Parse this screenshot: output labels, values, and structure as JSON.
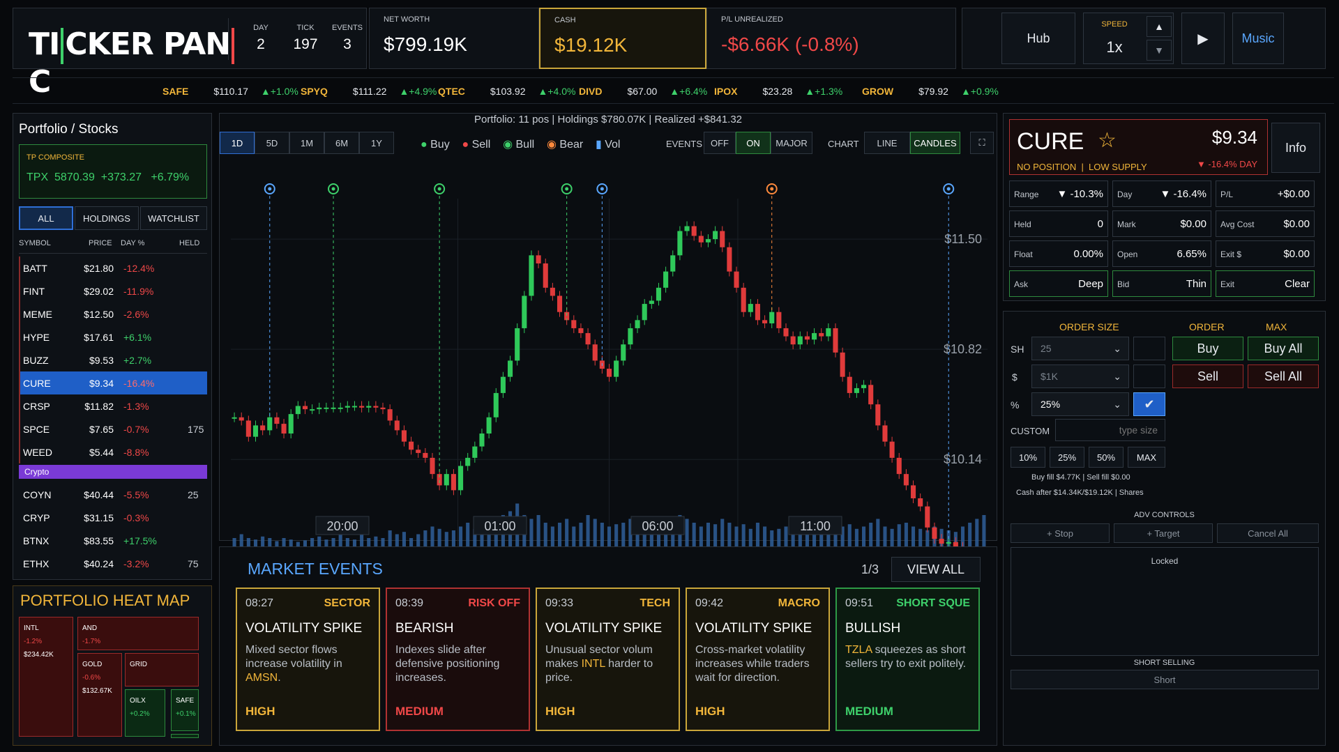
{
  "header": {
    "logo": "TICKER PANIC",
    "day_label": "DAY",
    "day": "2",
    "tick_label": "TICK",
    "tick": "197",
    "events_label": "EVENTS",
    "events": "3",
    "net_worth_label": "NET WORTH",
    "net_worth": "$799.19K",
    "cash_label": "CASH",
    "cash": "$19.12K",
    "pl_label": "P/L UNREALIZED",
    "pl": "-$6.66K (-0.8%)",
    "hub": "Hub",
    "speed_label": "SPEED",
    "speed": "1x",
    "speed_up": "▲",
    "speed_down": "▼",
    "play": "▶",
    "music": "Music"
  },
  "ticker": [
    {
      "sym": "SAFE",
      "price": "$110.17",
      "chg": "▲+1.0%"
    },
    {
      "sym": "SPYQ",
      "price": "$111.22",
      "chg": "▲+4.9%"
    },
    {
      "sym": "QTEC",
      "price": "$103.92",
      "chg": "▲+4.0%"
    },
    {
      "sym": "DIVD",
      "price": "$67.00",
      "chg": "▲+6.4%"
    },
    {
      "sym": "IPOX",
      "price": "$23.28",
      "chg": "▲+1.3%"
    },
    {
      "sym": "GROW",
      "price": "$79.92",
      "chg": "▲+0.9%"
    }
  ],
  "sidebar": {
    "title": "Portfolio / Stocks",
    "composite_label": "TP COMPOSITE",
    "composite_sym": "TPX",
    "composite_val": "5870.39",
    "composite_chg": "+373.27",
    "composite_pct": "+6.79%",
    "tabs": [
      "ALL",
      "HOLDINGS",
      "WATCHLIST"
    ],
    "cols": [
      "SYMBOL",
      "PRICE",
      "DAY %",
      "HELD"
    ],
    "stocks": [
      {
        "sym": "BATT",
        "price": "$21.80",
        "day": "-12.4%",
        "held": ""
      },
      {
        "sym": "FINT",
        "price": "$29.02",
        "day": "-11.9%",
        "held": ""
      },
      {
        "sym": "MEME",
        "price": "$12.50",
        "day": "-2.6%",
        "held": ""
      },
      {
        "sym": "HYPE",
        "price": "$17.61",
        "day": "+6.1%",
        "held": ""
      },
      {
        "sym": "BUZZ",
        "price": "$9.53",
        "day": "+2.7%",
        "held": ""
      },
      {
        "sym": "CURE",
        "price": "$9.34",
        "day": "-16.4%",
        "held": ""
      },
      {
        "sym": "CRSP",
        "price": "$11.82",
        "day": "-1.3%",
        "held": ""
      },
      {
        "sym": "SPCE",
        "price": "$7.65",
        "day": "-0.7%",
        "held": "175"
      },
      {
        "sym": "WEED",
        "price": "$5.44",
        "day": "-8.8%",
        "held": ""
      }
    ],
    "crypto_label": "Crypto",
    "crypto": [
      {
        "sym": "COYN",
        "price": "$40.44",
        "day": "-5.5%",
        "held": "25"
      },
      {
        "sym": "CRYP",
        "price": "$31.15",
        "day": "-0.3%",
        "held": ""
      },
      {
        "sym": "BTNX",
        "price": "$83.55",
        "day": "+17.5%",
        "held": ""
      },
      {
        "sym": "ETHX",
        "price": "$40.24",
        "day": "-3.2%",
        "held": "75"
      }
    ]
  },
  "heatmap": {
    "title": "PORTFOLIO HEAT MAP",
    "tiles": [
      {
        "name": "INTL",
        "pct": "-1.2%",
        "val": "$234.42K"
      },
      {
        "name": "AND",
        "pct": "-1.7%",
        "val": ""
      },
      {
        "name": "GOLD",
        "pct": "-0.6%",
        "val": "$132.67K"
      },
      {
        "name": "GRID",
        "pct": "",
        "val": ""
      },
      {
        "name": "OILX",
        "pct": "+0.2%",
        "val": ""
      },
      {
        "name": "SAFE",
        "pct": "+0.1%",
        "val": ""
      }
    ]
  },
  "chart": {
    "summary": "Portfolio: 11 pos | Holdings $780.07K | Realized +$841.32",
    "ranges": [
      "1D",
      "5D",
      "1M",
      "6M",
      "1Y"
    ],
    "legend": {
      "buy": "Buy",
      "sell": "Sell",
      "bull": "Bull",
      "bear": "Bear",
      "vol": "Vol"
    },
    "events_label": "EVENTS",
    "events_opts": [
      "OFF",
      "ON",
      "MAJOR"
    ],
    "chart_label": "CHART",
    "chart_opts": [
      "LINE",
      "CANDLES"
    ],
    "expand": "⛶",
    "price_label": "$9.34"
  },
  "chart_data": {
    "type": "candlestick",
    "ylim": [
      9.9,
      11.75
    ],
    "yticks": [
      "$11.50",
      "$10.82",
      "$10.14"
    ],
    "ytick_values": [
      11.5,
      10.82,
      10.14
    ],
    "xticks": [
      "20:00",
      "01:00",
      "06:00",
      "11:00"
    ],
    "closes": [
      10.4,
      10.38,
      10.28,
      10.35,
      10.32,
      10.4,
      10.36,
      10.3,
      10.42,
      10.47,
      10.45,
      10.45,
      10.46,
      10.46,
      10.46,
      10.46,
      10.47,
      10.47,
      10.46,
      10.47,
      10.46,
      10.45,
      10.38,
      10.32,
      10.25,
      10.2,
      10.18,
      10.15,
      10.05,
      9.98,
      10.05,
      9.95,
      10.1,
      10.15,
      10.22,
      10.3,
      10.4,
      10.55,
      10.65,
      10.75,
      10.95,
      11.15,
      11.4,
      11.35,
      11.2,
      11.15,
      11.05,
      11.0,
      10.95,
      10.92,
      10.85,
      10.75,
      10.7,
      10.65,
      10.75,
      10.85,
      10.95,
      11.0,
      11.1,
      11.12,
      11.2,
      11.3,
      11.4,
      11.55,
      11.58,
      11.52,
      11.48,
      11.5,
      11.55,
      11.45,
      11.3,
      11.2,
      11.05,
      11.1,
      11.0,
      10.98,
      11.05,
      10.95,
      10.9,
      10.85,
      10.9,
      10.88,
      10.92,
      10.9,
      10.95,
      10.8,
      10.65,
      10.55,
      10.58,
      10.6,
      10.48,
      10.35,
      10.25,
      10.15,
      10.05,
      9.98,
      9.9,
      9.85,
      9.72,
      9.65,
      9.62,
      9.63,
      9.6,
      9.55,
      9.52,
      9.5,
      9.34
    ],
    "volumes": [
      0.3,
      0.35,
      0.3,
      0.28,
      0.32,
      0.3,
      0.26,
      0.3,
      0.28,
      0.25,
      0.27,
      0.3,
      0.32,
      0.28,
      0.3,
      0.35,
      0.3,
      0.28,
      0.35,
      0.3,
      0.32,
      0.3,
      0.4,
      0.35,
      0.38,
      0.3,
      0.35,
      0.4,
      0.45,
      0.42,
      0.38,
      0.4,
      0.45,
      0.5,
      0.42,
      0.45,
      0.55,
      0.5,
      0.6,
      0.65,
      0.75,
      0.6,
      0.55,
      0.6,
      0.5,
      0.45,
      0.5,
      0.55,
      0.45,
      0.5,
      0.6,
      0.55,
      0.5,
      0.45,
      0.48,
      0.5,
      0.55,
      0.5,
      0.45,
      0.5,
      0.55,
      0.48,
      0.5,
      0.6,
      0.55,
      0.5,
      0.45,
      0.5,
      0.48,
      0.55,
      0.5,
      0.45,
      0.48,
      0.42,
      0.5,
      0.45,
      0.4,
      0.42,
      0.45,
      0.4,
      0.38,
      0.42,
      0.45,
      0.4,
      0.38,
      0.42,
      0.45,
      0.48,
      0.42,
      0.45,
      0.5,
      0.55,
      0.45,
      0.42,
      0.48,
      0.5,
      0.45,
      0.42,
      0.4,
      0.45,
      0.42,
      0.4,
      0.38,
      0.45,
      0.5,
      0.55,
      0.6
    ],
    "event_markers": [
      {
        "i": 5,
        "type": "bull"
      },
      {
        "i": 14,
        "type": "buy"
      },
      {
        "i": 29,
        "type": "buy"
      },
      {
        "i": 47,
        "type": "buy"
      },
      {
        "i": 52,
        "type": "bull"
      },
      {
        "i": 76,
        "type": "bear"
      },
      {
        "i": 101,
        "type": "bull"
      }
    ]
  },
  "cure": {
    "sym": "CURE",
    "star": "☆",
    "price": "$9.34",
    "status": "NO POSITION  |  LOW SUPPLY",
    "day": "▼ -16.4% DAY",
    "info": "Info",
    "cells": [
      {
        "k": "Range",
        "v": "▼ -10.3%",
        "c": "r"
      },
      {
        "k": "Day",
        "v": "▼ -16.4%",
        "c": "r"
      },
      {
        "k": "P/L",
        "v": "+$0.00",
        "c": "w"
      },
      {
        "k": "Held",
        "v": "0",
        "c": "w"
      },
      {
        "k": "Mark",
        "v": "$0.00",
        "c": "w"
      },
      {
        "k": "Avg Cost",
        "v": "$0.00",
        "c": "w"
      },
      {
        "k": "Float",
        "v": "0.00%",
        "c": "w"
      },
      {
        "k": "Open",
        "v": "6.65%",
        "c": "y"
      },
      {
        "k": "Exit $",
        "v": "$0.00",
        "c": "w"
      },
      {
        "k": "Ask",
        "v": "Deep",
        "c": "g"
      },
      {
        "k": "Bid",
        "v": "Thin",
        "c": "y"
      },
      {
        "k": "Exit",
        "v": "Clear",
        "c": "g"
      }
    ]
  },
  "order": {
    "size_label": "ORDER SIZE",
    "order_label": "ORDER",
    "max_label": "MAX",
    "sh": "SH",
    "sh_val": "25",
    "usd": "$",
    "usd_val": "$1K",
    "pct": "%",
    "pct_val": "25%",
    "buy": "Buy",
    "buy_all": "Buy All",
    "sell": "Sell",
    "sell_all": "Sell All",
    "custom": "CUSTOM",
    "custom_ph": "type size",
    "quick": [
      "10%",
      "25%",
      "50%",
      "MAX"
    ],
    "fill": "Buy fill $4.77K | Sell fill $0.00",
    "cash_after": "Cash after $14.34K/$19.12K | Shares",
    "adv": "ADV CONTROLS",
    "stop": "+ Stop",
    "target": "+ Target",
    "cancel_all": "Cancel All",
    "locked": "Locked",
    "short_label": "SHORT SELLING",
    "short": "Short"
  },
  "events": {
    "title": "MARKET EVENTS",
    "page": "1/3",
    "view_all": "VIEW ALL",
    "cards": [
      {
        "time": "08:27",
        "cat": "SECTOR",
        "head": "VOLATILITY SPIKE",
        "desc": "Mixed sector flows increase volatility in ",
        "ticker": "AMSN",
        "tail": ".",
        "level": "HIGH",
        "color": "#caa63a",
        "cc": "#f2b63a"
      },
      {
        "time": "08:39",
        "cat": "RISK OFF",
        "head": "BEARISH",
        "desc": "Indexes slide after defensive positioning increases.",
        "ticker": "",
        "tail": "",
        "level": "MEDIUM",
        "color": "#b03232",
        "cc": "#f04848"
      },
      {
        "time": "09:33",
        "cat": "TECH",
        "head": "VOLATILITY SPIKE",
        "desc": "Unusual sector volum makes ",
        "ticker": "INTL",
        "tail": " harder to price.",
        "level": "HIGH",
        "color": "#caa63a",
        "cc": "#f2b63a"
      },
      {
        "time": "09:42",
        "cat": "MACRO",
        "head": "VOLATILITY SPIKE",
        "desc": "Cross-market volatility increases while traders wait for direction.",
        "ticker": "",
        "tail": "",
        "level": "HIGH",
        "color": "#caa63a",
        "cc": "#f2b63a"
      },
      {
        "time": "09:51",
        "cat": "SHORT SQUE",
        "head": "BULLISH",
        "desc": "",
        "ticker": "TZLA",
        "tail": " squeezes as short sellers try to exit politely.",
        "level": "MEDIUM",
        "color": "#2e9a46",
        "cc": "#3ed16b"
      }
    ]
  }
}
